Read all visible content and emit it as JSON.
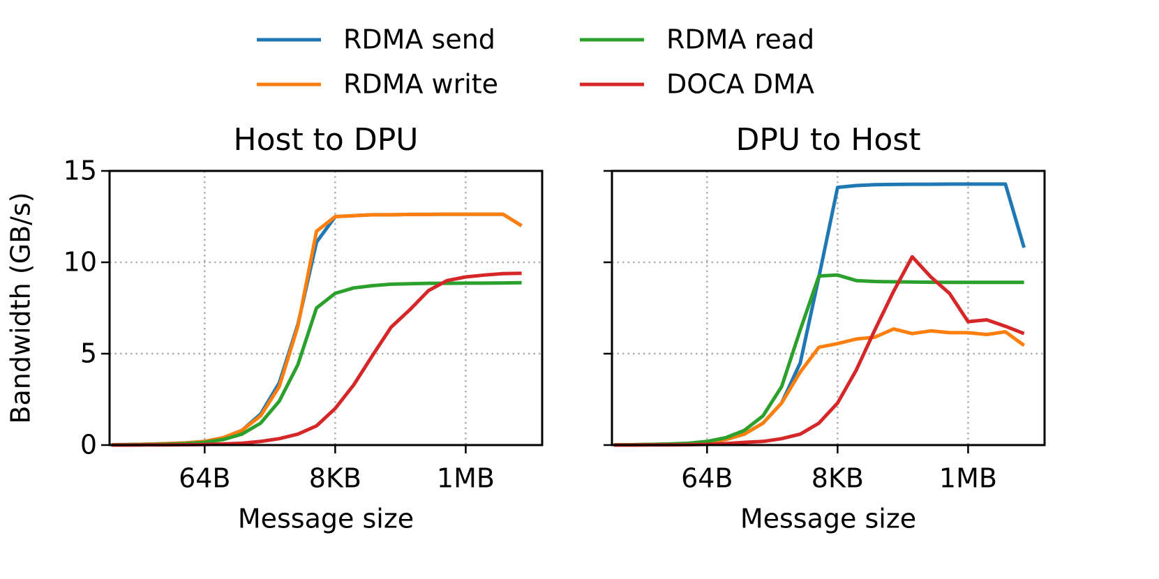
{
  "chart_data": [
    {
      "type": "line",
      "title": "Host to DPU",
      "xlabel": "Message size",
      "ylabel": "Bandwidth (GB/s)",
      "xscale": "log",
      "legend": "upper center",
      "grid": true,
      "show_ytick_labels": true,
      "x": [
        2,
        4,
        8,
        16,
        32,
        64,
        128,
        256,
        512,
        1024,
        2048,
        4096,
        8192,
        16384,
        32768,
        65536,
        131072,
        262144,
        524288,
        1048576,
        2097152,
        4194304,
        8388608
      ],
      "xlim": [
        1.866,
        17981600
      ],
      "xticks": [
        {
          "value": 64,
          "label": "64B"
        },
        {
          "value": 8192,
          "label": "8KB"
        },
        {
          "value": 1048576,
          "label": "1MB"
        }
      ],
      "ylim": [
        0,
        15
      ],
      "yticks": [
        0,
        5,
        10,
        15
      ],
      "series": [
        {
          "name": "RDMA send",
          "color": "#1f77b4",
          "values": [
            0.02,
            0.03,
            0.05,
            0.08,
            0.12,
            0.2,
            0.4,
            0.8,
            1.7,
            3.4,
            6.6,
            11.1,
            12.5,
            12.55,
            12.6,
            12.6,
            12.62,
            12.62,
            12.63,
            12.63,
            12.63,
            12.63,
            12.0
          ]
        },
        {
          "name": "RDMA write",
          "color": "#ff7f0e",
          "values": [
            0.02,
            0.03,
            0.05,
            0.08,
            0.12,
            0.2,
            0.4,
            0.8,
            1.6,
            3.2,
            6.5,
            11.7,
            12.5,
            12.55,
            12.6,
            12.6,
            12.62,
            12.62,
            12.63,
            12.63,
            12.63,
            12.63,
            12.0
          ]
        },
        {
          "name": "RDMA read",
          "color": "#2ca02c",
          "values": [
            0.01,
            0.02,
            0.03,
            0.05,
            0.08,
            0.15,
            0.3,
            0.6,
            1.2,
            2.4,
            4.4,
            7.5,
            8.3,
            8.6,
            8.72,
            8.8,
            8.83,
            8.85,
            8.85,
            8.86,
            8.86,
            8.87,
            8.88
          ]
        },
        {
          "name": "DOCA DMA",
          "color": "#d62728",
          "values": [
            0,
            0,
            0.01,
            0.01,
            0.02,
            0.03,
            0.06,
            0.1,
            0.2,
            0.35,
            0.6,
            1.05,
            2.0,
            3.3,
            4.9,
            6.45,
            7.4,
            8.45,
            9.0,
            9.2,
            9.3,
            9.38,
            9.4
          ]
        }
      ]
    },
    {
      "type": "line",
      "title": "DPU to Host",
      "xlabel": "Message size",
      "xscale": "log",
      "grid": true,
      "show_ytick_labels": false,
      "x": [
        2,
        4,
        8,
        16,
        32,
        64,
        128,
        256,
        512,
        1024,
        2048,
        4096,
        8192,
        16384,
        32768,
        65536,
        131072,
        262144,
        524288,
        1048576,
        2097152,
        4194304,
        8388608
      ],
      "xlim": [
        1.866,
        17981600
      ],
      "xticks": [
        {
          "value": 64,
          "label": "64B"
        },
        {
          "value": 8192,
          "label": "8KB"
        },
        {
          "value": 1048576,
          "label": "1MB"
        }
      ],
      "ylim": [
        0,
        15
      ],
      "yticks": [
        0,
        5,
        10,
        15
      ],
      "series": [
        {
          "name": "RDMA send",
          "color": "#1f77b4",
          "values": [
            0.01,
            0.02,
            0.03,
            0.05,
            0.08,
            0.15,
            0.3,
            0.6,
            1.2,
            2.3,
            4.5,
            9.2,
            14.1,
            14.2,
            14.25,
            14.26,
            14.27,
            14.27,
            14.28,
            14.28,
            14.28,
            14.28,
            10.8
          ]
        },
        {
          "name": "RDMA write",
          "color": "#ff7f0e",
          "values": [
            0.01,
            0.02,
            0.03,
            0.05,
            0.08,
            0.15,
            0.3,
            0.6,
            1.2,
            2.3,
            4.0,
            5.35,
            5.55,
            5.8,
            5.9,
            6.35,
            6.1,
            6.25,
            6.15,
            6.15,
            6.05,
            6.2,
            5.45
          ]
        },
        {
          "name": "RDMA read",
          "color": "#2ca02c",
          "values": [
            0.01,
            0.02,
            0.04,
            0.06,
            0.1,
            0.2,
            0.4,
            0.8,
            1.6,
            3.2,
            6.3,
            9.25,
            9.3,
            9.0,
            8.95,
            8.93,
            8.92,
            8.91,
            8.9,
            8.9,
            8.9,
            8.9,
            8.9
          ]
        },
        {
          "name": "DOCA DMA",
          "color": "#d62728",
          "values": [
            0,
            0,
            0.01,
            0.01,
            0.02,
            0.04,
            0.08,
            0.15,
            0.2,
            0.35,
            0.6,
            1.2,
            2.3,
            4.1,
            6.3,
            8.4,
            10.3,
            9.2,
            8.3,
            6.75,
            6.85,
            6.5,
            6.1
          ]
        }
      ]
    }
  ]
}
